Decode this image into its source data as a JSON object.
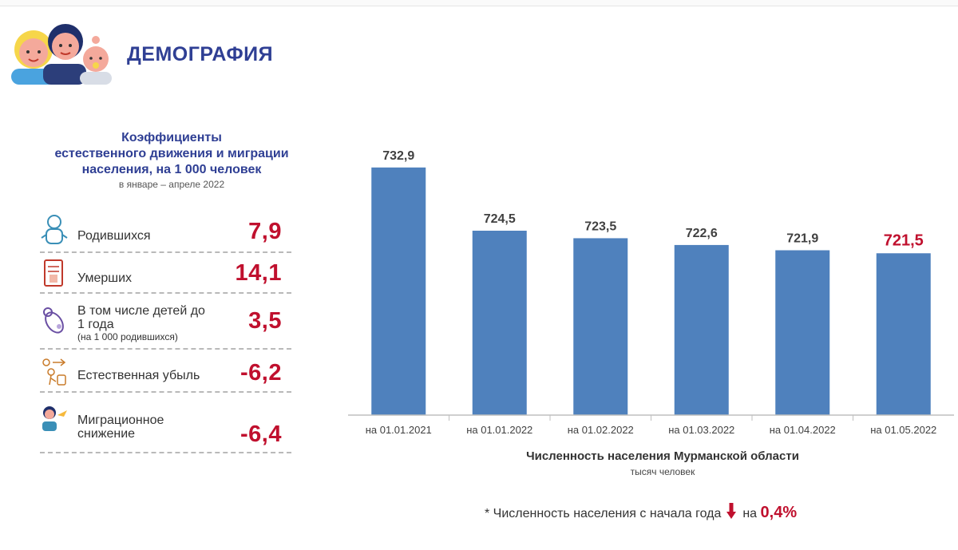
{
  "header": {
    "title": "ДЕМОГРАФИЯ",
    "logo_icon": "family-icon"
  },
  "panel": {
    "title": "Коэффициенты\nестественного движения и миграции\nнаселения, на 1 000 человек",
    "period": "в январе – апреле  2022",
    "rows": [
      {
        "icon": "baby-icon",
        "label": "Родившихся",
        "note": "",
        "value": "7,9"
      },
      {
        "icon": "death-certificate-icon",
        "label": "Умерших",
        "note": "",
        "value": "14,1"
      },
      {
        "icon": "infant-icon",
        "label": "В том числе детей до 1 года",
        "note": "(на 1 000 родившихся)",
        "value": "3,5"
      },
      {
        "icon": "natural-decline-icon",
        "label": "Естественная убыль",
        "note": "",
        "value": "-6,2"
      },
      {
        "icon": "migration-icon",
        "label": "Миграционное снижение",
        "note": "",
        "value": "-6,4"
      }
    ]
  },
  "chart_data": {
    "type": "bar",
    "categories": [
      "на 01.01.2021",
      "на 01.01.2022",
      "на 01.02.2022",
      "на 01.03.2022",
      "на 01.04.2022",
      "на 01.05.2022"
    ],
    "values": [
      732.9,
      724.5,
      723.5,
      722.6,
      721.9,
      721.5
    ],
    "value_labels": [
      "732,9",
      "724,5",
      "723,5",
      "722,6",
      "721,9",
      "721,5"
    ],
    "title": "Численность населения Мурманской области",
    "subtitle": "тысяч человек",
    "ylim": [
      700,
      735
    ],
    "grid": false,
    "highlight_index": 5,
    "colors": {
      "bar": "#4f81bd",
      "label": "#404040",
      "highlight_label": "#c0102e"
    }
  },
  "footnote": {
    "text": "* Численность населения с начала года",
    "connector": "на",
    "value": "0,4%",
    "icon": "down-arrow-icon"
  },
  "colors": {
    "title": "#2f3f94",
    "accent": "#c0102e"
  }
}
